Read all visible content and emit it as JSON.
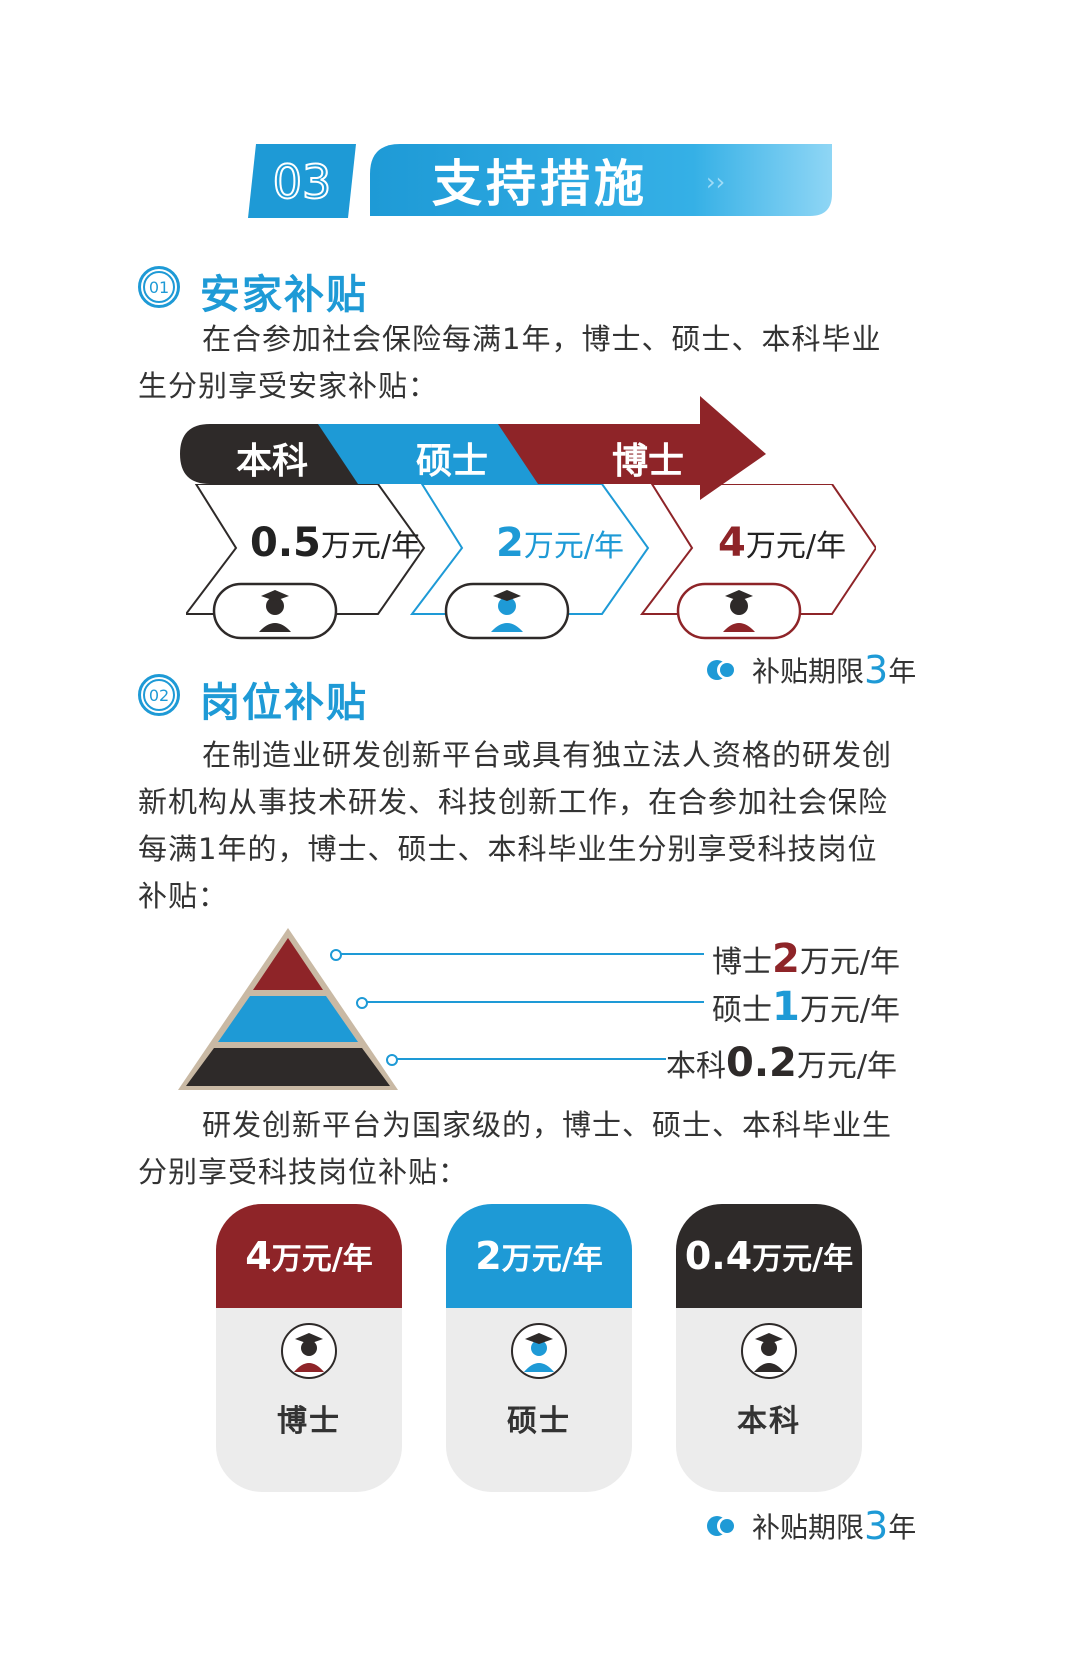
{
  "header": {
    "number": "03",
    "title": "支持措施",
    "chevron": "››"
  },
  "section1": {
    "index": "01",
    "title": "安家补贴",
    "para_line1": "在合参加社会保险每满1年，博士、硕士、本科毕业",
    "para_line2": "生分别享受安家补贴：",
    "arrow_labels": [
      "本科",
      "硕士",
      "博士"
    ],
    "amounts": [
      {
        "num": "0.5",
        "unit": "万元/年"
      },
      {
        "num": "2",
        "unit": "万元/年"
      },
      {
        "num": "4",
        "unit": "万元/年"
      }
    ],
    "note": {
      "prefix": "补贴期限",
      "num": "3",
      "suffix": "年"
    }
  },
  "section2": {
    "index": "02",
    "title": "岗位补贴",
    "para_lines": [
      "在制造业研发创新平台或具有独立法人资格的研发创",
      "新机构从事技术研发、科技创新工作，在合参加社会保险",
      "每满1年的，博士、硕士、本科毕业生分别享受科技岗位",
      "补贴："
    ],
    "pyramid": [
      {
        "degree": "博士",
        "num": "2",
        "unit": "万元/年"
      },
      {
        "degree": "硕士",
        "num": "1",
        "unit": "万元/年"
      },
      {
        "degree": "本科",
        "num": "0.2",
        "unit": "万元/年"
      }
    ],
    "para2_line1": "研发创新平台为国家级的，博士、硕士、本科毕业生",
    "para2_line2": "分别享受科技岗位补贴：",
    "cards": [
      {
        "num": "4",
        "unit": "万元/年",
        "degree": "博士"
      },
      {
        "num": "2",
        "unit": "万元/年",
        "degree": "硕士"
      },
      {
        "num": "0.4",
        "unit": "万元/年",
        "degree": "本科"
      }
    ],
    "note": {
      "prefix": "补贴期限",
      "num": "3",
      "suffix": "年"
    }
  },
  "colors": {
    "blue": "#1e9ad6",
    "red": "#8e2428",
    "dark": "#2e2a29",
    "grey": "#ececec"
  },
  "icons": [
    "graduate-icon",
    "dot-bullet-icon"
  ]
}
